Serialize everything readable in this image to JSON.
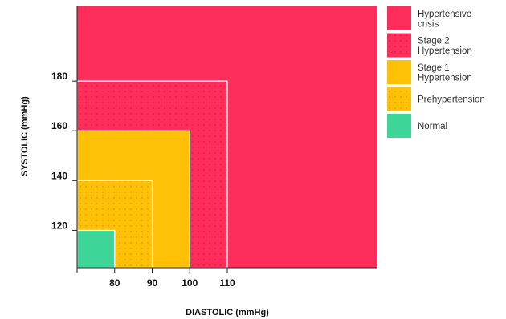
{
  "chart_data": {
    "type": "area",
    "title": "",
    "xlabel": "DIASTOLIC (mmHg)",
    "ylabel": "SYSTOLIC (mmHg)",
    "xlim": [
      70,
      150
    ],
    "ylim": [
      105,
      210
    ],
    "xticks": [
      80,
      90,
      100,
      110
    ],
    "yticks": [
      120,
      140,
      160,
      180
    ],
    "regions": [
      {
        "name": "Hypertensive crisis",
        "x_max": 150,
        "y_max": 210,
        "color": "#ff2d5a",
        "dotted": false
      },
      {
        "name": "Stage 2 Hypertension",
        "x_max": 110,
        "y_max": 180,
        "color": "#ff2d5a",
        "dotted": true
      },
      {
        "name": "Stage 1 Hypertension",
        "x_max": 100,
        "y_max": 160,
        "color": "#ffc107",
        "dotted": false
      },
      {
        "name": "Prehypertension",
        "x_max": 90,
        "y_max": 140,
        "color": "#ffc107",
        "dotted": true
      },
      {
        "name": "Normal",
        "x_max": 80,
        "y_max": 120,
        "color": "#3dd598",
        "dotted": false
      }
    ],
    "legend": {
      "position": "right",
      "items": [
        {
          "lines": [
            "Hypertensive",
            "crisis"
          ],
          "color": "#ff2d5a",
          "dotted": false
        },
        {
          "lines": [
            "Stage 2",
            "Hypertension"
          ],
          "color": "#ff2d5a",
          "dotted": true
        },
        {
          "lines": [
            "Stage 1",
            "Hypertension"
          ],
          "color": "#ffc107",
          "dotted": false
        },
        {
          "lines": [
            "Prehypertension"
          ],
          "color": "#ffc107",
          "dotted": true
        },
        {
          "lines": [
            "Normal"
          ],
          "color": "#3dd598",
          "dotted": false
        }
      ]
    }
  }
}
